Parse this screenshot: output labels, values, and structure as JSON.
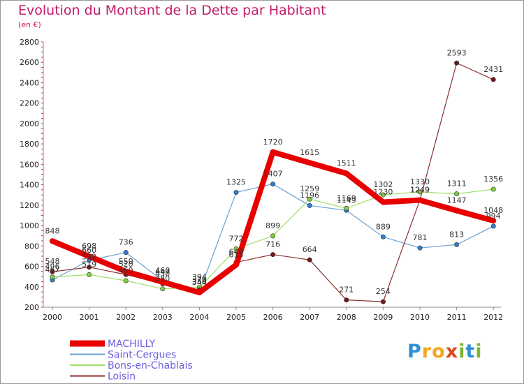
{
  "title": "Evolution du Montant de la Dette par Habitant",
  "subtitle": "(en €)",
  "logo_letters": [
    {
      "char": "P",
      "color": "#2e8fd6"
    },
    {
      "char": "r",
      "color": "#f5a623"
    },
    {
      "char": "o",
      "color": "#f5a623"
    },
    {
      "char": "x",
      "color": "#d94a1e"
    },
    {
      "char": "i",
      "color": "#7cb82f"
    },
    {
      "char": "t",
      "color": "#2e8fd6"
    },
    {
      "char": "i",
      "color": "#7cb82f"
    }
  ],
  "chart_data": {
    "type": "line",
    "x": [
      2000,
      2001,
      2002,
      2003,
      2004,
      2005,
      2006,
      2007,
      2008,
      2009,
      2010,
      2011,
      2012
    ],
    "ylim": [
      200,
      2800
    ],
    "yticks": [
      200,
      400,
      600,
      800,
      1000,
      1200,
      1400,
      1600,
      1800,
      2000,
      2200,
      2400,
      2600,
      2800
    ],
    "grid": false,
    "legend_position": "bottom-left",
    "series": [
      {
        "name": "MACHILLY",
        "color": "#e80000",
        "width": 8,
        "marker": false,
        "values": [
          848,
          698,
          550,
          447,
          344,
          615,
          1720,
          1615,
          1511,
          1230,
          1249,
          1147,
          1048
        ],
        "labels": [
          "848",
          "698",
          "550",
          "447",
          "344",
          "615",
          "1720",
          "1615",
          "1511",
          "1230",
          "1249",
          "1147",
          "1048"
        ]
      },
      {
        "name": "Saint-Cergues",
        "color": "#6aa2d1",
        "width": 1.2,
        "marker": true,
        "marker_color": "#2f7fd0",
        "values": [
          467,
          660,
          736,
          460,
          350,
          1325,
          1407,
          1196,
          1149,
          889,
          781,
          813,
          994
        ],
        "labels": [
          "467",
          "660",
          "736",
          "460",
          "350",
          "1325",
          "1407",
          "1196",
          "1149",
          "889",
          "781",
          "813",
          "994"
        ]
      },
      {
        "name": "Bons-en-Chablais",
        "color": "#9fde6a",
        "width": 1.2,
        "marker": true,
        "marker_color": "#7fd140",
        "values": [
          496,
          519,
          460,
          380,
          394,
          772,
          899,
          1259,
          1169,
          1302,
          1330,
          1311,
          1356
        ],
        "labels": [
          "496",
          "519",
          "460",
          "380",
          "394",
          "772",
          "899",
          "1259",
          "1169",
          "1302",
          "1330",
          "1311",
          "1356"
        ]
      },
      {
        "name": "Loisin",
        "color": "#8b2e2e",
        "width": 1.2,
        "marker": true,
        "marker_color": "#6e1a1a",
        "values": [
          548,
          592,
          520,
          430,
          370,
          640,
          716,
          664,
          271,
          254,
          1249,
          2593,
          2431
        ],
        "labels": [
          "548",
          "592",
          "520",
          "430",
          "370",
          "640",
          "716",
          "664",
          "271",
          "254",
          "1249",
          "2593",
          "2431"
        ]
      }
    ]
  }
}
